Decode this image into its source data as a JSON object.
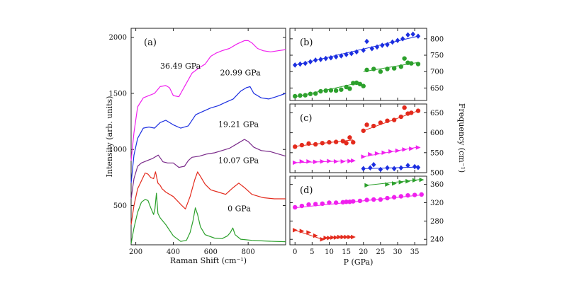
{
  "chart_data": [
    {
      "type": "line",
      "panel": "(a)",
      "xlabel": "Raman Shift (cm⁻¹)",
      "ylabel": "Intensity (arb. units)",
      "xlim": [
        175,
        1000
      ],
      "ylim": [
        150,
        2080
      ],
      "xticks": [
        200,
        400,
        600,
        800
      ],
      "yticks": [
        500,
        1000,
        1500,
        2000
      ],
      "grid": false,
      "series": [
        {
          "name": "0 GPa",
          "color": "#2ca02c",
          "x": [
            175,
            190,
            210,
            230,
            250,
            265,
            280,
            295,
            302,
            310,
            318,
            330,
            360,
            400,
            440,
            470,
            490,
            505,
            518,
            530,
            545,
            570,
            620,
            660,
            690,
            705,
            718,
            730,
            760,
            820,
            880,
            940,
            1000
          ],
          "y": [
            160,
            300,
            440,
            530,
            555,
            545,
            480,
            420,
            470,
            610,
            430,
            390,
            330,
            230,
            180,
            190,
            260,
            360,
            480,
            420,
            310,
            240,
            210,
            205,
            230,
            260,
            300,
            240,
            200,
            190,
            185,
            180,
            178
          ]
        },
        {
          "name": "10.07 GPa",
          "color": "#e32a1c",
          "x": [
            175,
            190,
            210,
            230,
            250,
            265,
            280,
            295,
            305,
            318,
            330,
            340,
            360,
            400,
            440,
            465,
            490,
            515,
            530,
            545,
            570,
            600,
            640,
            680,
            720,
            750,
            780,
            820,
            880,
            940,
            1000
          ],
          "y": [
            330,
            500,
            650,
            720,
            790,
            780,
            750,
            740,
            800,
            700,
            680,
            650,
            620,
            580,
            510,
            470,
            580,
            730,
            800,
            760,
            690,
            640,
            620,
            600,
            660,
            700,
            660,
            600,
            570,
            560,
            560
          ]
        },
        {
          "name": "19.21 GPa",
          "color": "#7a2a8a",
          "x": [
            175,
            190,
            210,
            230,
            260,
            290,
            320,
            345,
            370,
            400,
            430,
            460,
            480,
            500,
            540,
            580,
            620,
            660,
            700,
            740,
            780,
            800,
            830,
            870,
            920,
            960,
            1000
          ],
          "y": [
            560,
            740,
            850,
            880,
            900,
            920,
            950,
            890,
            880,
            880,
            840,
            850,
            900,
            930,
            940,
            960,
            970,
            990,
            1010,
            1050,
            1090,
            1070,
            1020,
            990,
            980,
            960,
            940
          ]
        },
        {
          "name": "20.99 GPa",
          "color": "#1b2ee0",
          "x": [
            175,
            190,
            210,
            240,
            270,
            300,
            330,
            360,
            400,
            440,
            480,
            520,
            560,
            600,
            640,
            680,
            720,
            760,
            790,
            810,
            830,
            870,
            910,
            950,
            1000
          ],
          "y": [
            700,
            950,
            1100,
            1190,
            1200,
            1190,
            1240,
            1260,
            1220,
            1190,
            1210,
            1310,
            1340,
            1370,
            1390,
            1420,
            1450,
            1520,
            1550,
            1560,
            1500,
            1460,
            1450,
            1470,
            1500
          ]
        },
        {
          "name": "36.49 GPa",
          "color": "#f020ee",
          "x": [
            175,
            190,
            210,
            240,
            270,
            300,
            330,
            360,
            380,
            400,
            430,
            460,
            500,
            540,
            570,
            600,
            630,
            660,
            700,
            740,
            780,
            800,
            820,
            850,
            880,
            920,
            960,
            1000
          ],
          "y": [
            900,
            1150,
            1380,
            1460,
            1480,
            1500,
            1560,
            1570,
            1550,
            1480,
            1470,
            1560,
            1680,
            1730,
            1760,
            1830,
            1860,
            1880,
            1900,
            1940,
            1970,
            1970,
            1950,
            1900,
            1880,
            1870,
            1880,
            1890
          ]
        }
      ],
      "annotations": [
        {
          "text": "36.49 GPa",
          "x": 330,
          "y": 1720
        },
        {
          "text": "20.99 GPa",
          "x": 650,
          "y": 1660
        },
        {
          "text": "19.21 GPa",
          "x": 640,
          "y": 1200
        },
        {
          "text": "10.07 GPa",
          "x": 640,
          "y": 880
        },
        {
          "text": "0 GPa",
          "x": 690,
          "y": 450
        }
      ]
    },
    {
      "type": "scatter",
      "panel": "(b)",
      "xlabel": "",
      "ylabel": "Frequency (cm⁻¹)",
      "xlim": [
        -1.5,
        38.5
      ],
      "ylim": [
        612,
        832
      ],
      "yticks": [
        650,
        700,
        750,
        800
      ],
      "y_axis_side": "right",
      "series": [
        {
          "color": "#1b2ee0",
          "marker": "diamond",
          "x": [
            0,
            1.5,
            3,
            4.5,
            6,
            7.5,
            9,
            10.5,
            12,
            13.5,
            15,
            16.5,
            18,
            20,
            21,
            22.5,
            24,
            25.5,
            27,
            28.5,
            30,
            31.5,
            33,
            34.5,
            36
          ],
          "y": [
            720,
            723,
            725,
            730,
            735,
            737,
            740,
            742,
            745,
            748,
            752,
            755,
            760,
            765,
            792,
            770,
            775,
            780,
            782,
            790,
            795,
            800,
            812,
            814,
            808
          ],
          "fit": [
            [
              0,
              720
            ],
            [
              36,
              808
            ]
          ]
        },
        {
          "color": "#2ca02c",
          "marker": "circle",
          "x": [
            0,
            1.5,
            3,
            4.5,
            6,
            7.5,
            9,
            10.5,
            12,
            13.5,
            15,
            16,
            17,
            18,
            19,
            20,
            21,
            23,
            25,
            27,
            29,
            31,
            32,
            33,
            34,
            36
          ],
          "y": [
            625,
            627,
            628,
            632,
            633,
            640,
            642,
            643,
            642,
            645,
            653,
            648,
            665,
            666,
            662,
            656,
            705,
            708,
            700,
            708,
            710,
            715,
            740,
            727,
            725,
            723
          ],
          "fit_segments": [
            [
              [
                0,
                623
              ],
              [
                17,
                662
              ]
            ],
            [
              [
                20,
                700
              ],
              [
                36,
                728
              ]
            ]
          ]
        }
      ]
    },
    {
      "type": "scatter",
      "panel": "(c)",
      "xlabel": "",
      "ylabel": "Frequency (cm⁻¹)",
      "xlim": [
        -1.5,
        38.5
      ],
      "ylim": [
        500,
        672
      ],
      "yticks": [
        500,
        550,
        600,
        650
      ],
      "y_axis_side": "right",
      "series": [
        {
          "color": "#e32a1c",
          "marker": "circle",
          "x": [
            0,
            2,
            4,
            6,
            8,
            10,
            12,
            14,
            15,
            16,
            17,
            20,
            21,
            23,
            25,
            27,
            29,
            31,
            32,
            33,
            34,
            36
          ],
          "y": [
            565,
            569,
            573,
            571,
            574,
            576,
            577,
            579,
            574,
            588,
            576,
            605,
            620,
            617,
            625,
            630,
            632,
            640,
            663,
            648,
            650,
            655
          ],
          "fit_segments": [
            [
              [
                0,
                566
              ],
              [
                17,
                582
              ]
            ],
            [
              [
                20,
                605
              ],
              [
                36,
                655
              ]
            ]
          ]
        },
        {
          "color": "#f020ee",
          "marker": "triangle",
          "x": [
            0,
            2,
            4,
            6,
            8,
            10,
            12,
            14,
            16,
            17,
            20,
            22,
            24,
            26,
            28,
            30,
            32,
            34,
            36
          ],
          "y": [
            525,
            528,
            528,
            527,
            528,
            529,
            528,
            528,
            529,
            530,
            540,
            546,
            548,
            550,
            553,
            555,
            558,
            560,
            563
          ],
          "fit_segments": [
            [
              [
                0,
                525
              ],
              [
                17,
                530
              ]
            ],
            [
              [
                20,
                540
              ],
              [
                36,
                564
              ]
            ]
          ]
        },
        {
          "color": "#1b2ee0",
          "marker": "diamond",
          "x": [
            20,
            22,
            23,
            25,
            27,
            29,
            31,
            33,
            35,
            36
          ],
          "y": [
            510,
            512,
            520,
            508,
            512,
            510,
            512,
            518,
            515,
            513
          ],
          "fit": [
            [
              20,
              510
            ],
            [
              36,
              514
            ]
          ]
        }
      ]
    },
    {
      "type": "scatter",
      "panel": "(d)",
      "xlabel": "P (GPa)",
      "ylabel": "",
      "xlim": [
        -1.5,
        38.5
      ],
      "ylim": [
        228,
        378
      ],
      "xticks": [
        0,
        5,
        10,
        15,
        20,
        25,
        30,
        35
      ],
      "yticks": [
        240,
        280,
        320,
        360
      ],
      "y_axis_side": "right",
      "series": [
        {
          "color": "#2ca02c",
          "marker": "triangle",
          "x": [
            21,
            27,
            29,
            31,
            33,
            35,
            37
          ],
          "y": [
            358,
            360,
            362,
            365,
            367,
            369,
            370
          ],
          "fit": [
            [
              21,
              358
            ],
            [
              37,
              371
            ]
          ]
        },
        {
          "color": "#f020ee",
          "marker": "circle",
          "x": [
            0,
            2,
            4,
            6,
            8,
            10,
            12,
            14,
            15,
            16,
            17,
            19,
            21,
            23,
            25,
            27,
            29,
            31,
            33,
            35,
            37
          ],
          "y": [
            310,
            313,
            316,
            317,
            318,
            320,
            320,
            321,
            322,
            322,
            323,
            324,
            326,
            327,
            327,
            330,
            332,
            334,
            336,
            337,
            338
          ],
          "fit": [
            [
              0,
              309
            ],
            [
              37,
              337
            ]
          ]
        },
        {
          "color": "#e32a1c",
          "marker": "triangle",
          "x": [
            0,
            2,
            4,
            6,
            8,
            9,
            10,
            11,
            12,
            13,
            14,
            15,
            16,
            17
          ],
          "y": [
            260,
            258,
            255,
            248,
            240,
            243,
            243,
            244,
            244,
            245,
            245,
            245,
            245,
            245
          ],
          "fit_segments": [
            [
              [
                0,
                260
              ],
              [
                8,
                240
              ]
            ],
            [
              [
                8,
                242
              ],
              [
                17,
                245
              ]
            ]
          ]
        }
      ]
    }
  ]
}
